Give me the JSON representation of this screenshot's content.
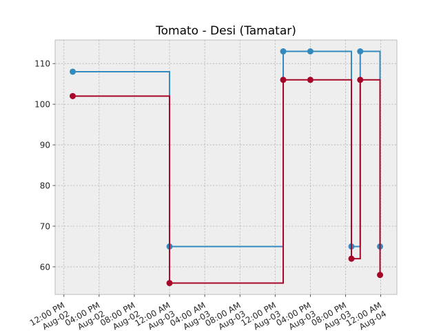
{
  "chart_data": {
    "type": "line",
    "title": "Tomato - Desi (Tamatar)",
    "xlabel": "",
    "ylabel": "",
    "step_style": "post",
    "grid": true,
    "x_axis": {
      "type": "datetime",
      "range": [
        "2025-08-02T11:00",
        "2025-08-04T01:50"
      ],
      "ticks": [
        {
          "value": "2025-08-02T12:00",
          "label": [
            "12:00 PM",
            "Aug-02"
          ]
        },
        {
          "value": "2025-08-02T16:00",
          "label": [
            "04:00 PM",
            "Aug-02"
          ]
        },
        {
          "value": "2025-08-02T20:00",
          "label": [
            "08:00 PM",
            "Aug-02"
          ]
        },
        {
          "value": "2025-08-03T00:00",
          "label": [
            "12:00 AM",
            "Aug-03"
          ]
        },
        {
          "value": "2025-08-03T04:00",
          "label": [
            "04:00 AM",
            "Aug-03"
          ]
        },
        {
          "value": "2025-08-03T08:00",
          "label": [
            "08:00 AM",
            "Aug-03"
          ]
        },
        {
          "value": "2025-08-03T12:00",
          "label": [
            "12:00 PM",
            "Aug-03"
          ]
        },
        {
          "value": "2025-08-03T16:00",
          "label": [
            "04:00 PM",
            "Aug-03"
          ]
        },
        {
          "value": "2025-08-03T20:00",
          "label": [
            "08:00 PM",
            "Aug-03"
          ]
        },
        {
          "value": "2025-08-04T00:00",
          "label": [
            "12:00 AM",
            "Aug-04"
          ]
        }
      ]
    },
    "y_axis": {
      "range": [
        53.2,
        115.8
      ],
      "ticks": [
        60,
        70,
        80,
        90,
        100,
        110
      ]
    },
    "series": [
      {
        "color": "#348ABD",
        "points": [
          {
            "x": "2025-08-02T13:00",
            "y": 108
          },
          {
            "x": "2025-08-03T00:00",
            "y": 65
          },
          {
            "x": "2025-08-03T12:55",
            "y": 113
          },
          {
            "x": "2025-08-03T16:00",
            "y": 113
          },
          {
            "x": "2025-08-03T20:40",
            "y": 65
          },
          {
            "x": "2025-08-03T21:40",
            "y": 113
          },
          {
            "x": "2025-08-03T23:55",
            "y": 65
          }
        ]
      },
      {
        "color": "#A60628",
        "points": [
          {
            "x": "2025-08-02T13:00",
            "y": 102
          },
          {
            "x": "2025-08-03T00:00",
            "y": 56
          },
          {
            "x": "2025-08-03T12:55",
            "y": 106
          },
          {
            "x": "2025-08-03T16:00",
            "y": 106
          },
          {
            "x": "2025-08-03T20:40",
            "y": 62
          },
          {
            "x": "2025-08-03T21:40",
            "y": 106
          },
          {
            "x": "2025-08-03T23:55",
            "y": 58
          }
        ]
      }
    ]
  }
}
